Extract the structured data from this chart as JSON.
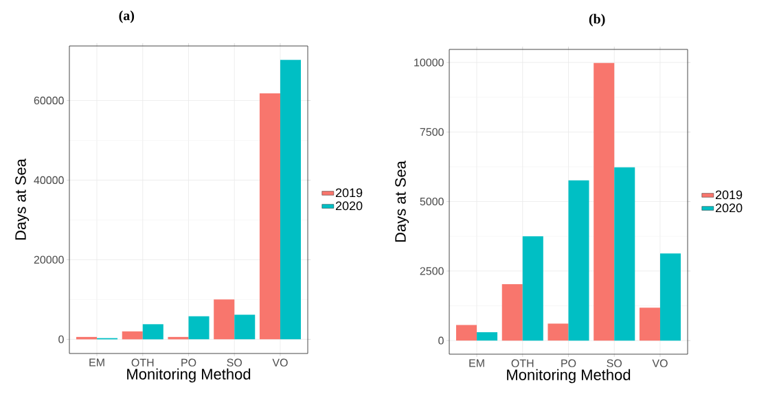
{
  "chart_data": [
    {
      "type": "bar",
      "title": "(a)",
      "xlabel": "Monitoring Method",
      "ylabel": "Days at Sea",
      "categories": [
        "EM",
        "OTH",
        "PO",
        "SO",
        "VO"
      ],
      "series": [
        {
          "name": "2019",
          "color": "#f8766d",
          "values": [
            600,
            2000,
            600,
            10000,
            61800
          ]
        },
        {
          "name": "2020",
          "color": "#00bfc4",
          "values": [
            300,
            3800,
            5800,
            6200,
            70200
          ]
        }
      ],
      "ylim": [
        -3560,
        73700
      ],
      "yticks": [
        0,
        20000,
        40000,
        60000
      ],
      "grid": true,
      "legend": "right"
    },
    {
      "type": "bar",
      "title": "(b)",
      "xlabel": "Monitoring Method",
      "ylabel": "Days at Sea",
      "categories": [
        "EM",
        "OTH",
        "PO",
        "SO",
        "VO"
      ],
      "series": [
        {
          "name": "2019",
          "color": "#f8766d",
          "values": [
            560,
            2030,
            610,
            9980,
            1180
          ]
        },
        {
          "name": "2020",
          "color": "#00bfc4",
          "values": [
            300,
            3750,
            5760,
            6230,
            3130
          ]
        }
      ],
      "ylim": [
        -490,
        10470
      ],
      "yticks": [
        0,
        2500,
        5000,
        7500,
        10000
      ],
      "grid": true,
      "legend": "right"
    }
  ]
}
